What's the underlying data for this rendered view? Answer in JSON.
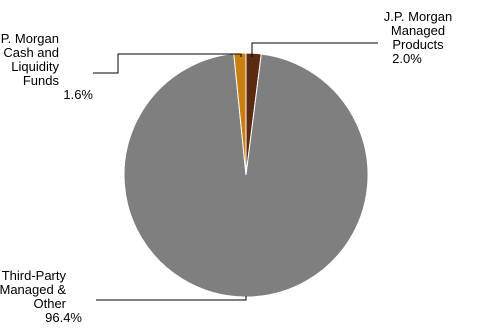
{
  "chart_data": {
    "type": "pie",
    "title": "",
    "slices": [
      {
        "label_lines": [
          "J.P. Morgan",
          "Managed",
          "Products"
        ],
        "value": 2.0,
        "value_label": "2.0%",
        "color": "#5a2a12"
      },
      {
        "label_lines": [
          "Third-Party",
          "Managed &",
          "Other"
        ],
        "value": 96.4,
        "value_label": "96.4%",
        "color": "#7f7f7f"
      },
      {
        "label_lines": [
          "J.P. Morgan",
          "Cash and",
          "Liquidity",
          "Funds"
        ],
        "value": 1.6,
        "value_label": "1.6%",
        "color": "#c97f12"
      }
    ],
    "legend": "none",
    "start_angle_deg": 0,
    "direction": "clockwise"
  }
}
